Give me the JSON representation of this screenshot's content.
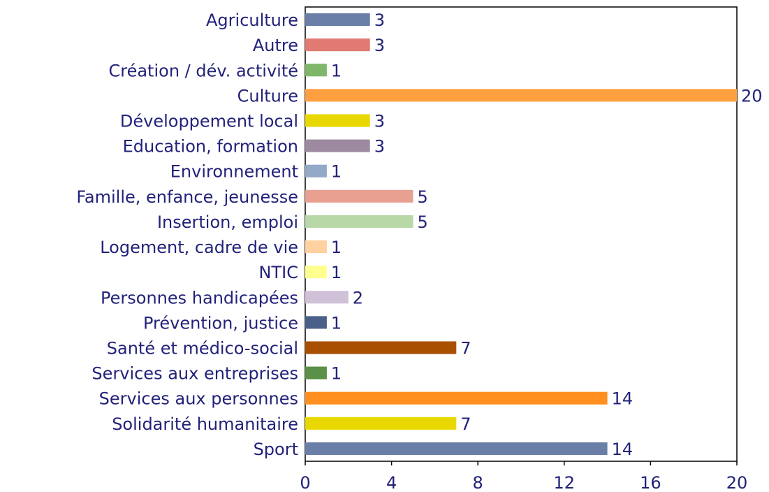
{
  "chart_data": {
    "type": "barh",
    "categories": [
      "Agriculture",
      "Autre",
      "Création / dév. activité",
      "Culture",
      "Développement local",
      "Education, formation",
      "Environnement",
      "Famille, enfance, jeunesse",
      "Insertion, emploi",
      "Logement, cadre de vie",
      "NTIC",
      "Personnes handicapées",
      "Prévention, justice",
      "Santé et médico-social",
      "Services aux entreprises",
      "Services aux personnes",
      "Solidarité humanitaire",
      "Sport"
    ],
    "values": [
      3,
      3,
      1,
      20,
      3,
      3,
      1,
      5,
      5,
      1,
      1,
      2,
      1,
      7,
      1,
      14,
      7,
      14
    ],
    "colors": [
      "#6a7fa8",
      "#e07a72",
      "#7fb76a",
      "#ffa040",
      "#e8d800",
      "#9e8aa0",
      "#93a9c8",
      "#e8a090",
      "#b8d8a8",
      "#ffd0a0",
      "#ffff90",
      "#d0c0d8",
      "#4a6088",
      "#a85000",
      "#5a9048",
      "#ff9020",
      "#e8d800",
      "#6a7fa8"
    ],
    "xlim": [
      0,
      20
    ],
    "xticks": [
      0,
      4,
      8,
      12,
      16,
      20
    ]
  }
}
